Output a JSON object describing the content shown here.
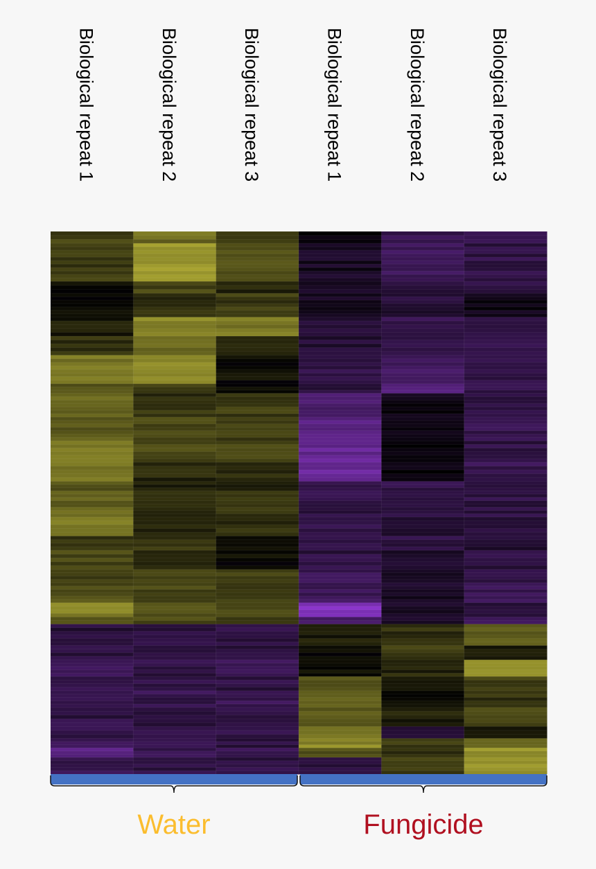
{
  "chart_data": {
    "type": "heatmap",
    "columns": [
      "Biological repeat 1",
      "Biological repeat 2",
      "Biological repeat 3",
      "Biological repeat 1",
      "Biological repeat 2",
      "Biological repeat 3"
    ],
    "groups": [
      {
        "label": "Water",
        "columns": [
          0,
          1,
          2
        ],
        "color": "#fbbd2e"
      },
      {
        "label": "Fungicide",
        "columns": [
          3,
          4,
          5
        ],
        "color": "#b01020"
      }
    ],
    "color_scale": {
      "low": "#9a3be0",
      "mid": "#000000",
      "high": "#c7c23a"
    },
    "value_range": [
      -1,
      1
    ],
    "blocks": [
      {
        "span": 0.025,
        "values": [
          0.35,
          0.55,
          0.3,
          -0.05,
          -0.35,
          -0.3
        ]
      },
      {
        "span": 0.08,
        "values": [
          0.3,
          0.8,
          0.45,
          -0.15,
          -0.4,
          -0.3
        ]
      },
      {
        "span": 0.025,
        "values": [
          0.05,
          0.35,
          0.2,
          -0.2,
          -0.3,
          -0.3
        ]
      },
      {
        "span": 0.05,
        "values": [
          0.02,
          0.25,
          0.3,
          -0.15,
          -0.25,
          -0.1
        ]
      },
      {
        "span": 0.04,
        "values": [
          0.15,
          0.7,
          0.6,
          -0.2,
          -0.35,
          -0.25
        ]
      },
      {
        "span": 0.04,
        "values": [
          0.25,
          0.55,
          0.2,
          -0.25,
          -0.35,
          -0.35
        ]
      },
      {
        "span": 0.06,
        "values": [
          0.6,
          0.7,
          0.05,
          -0.3,
          -0.4,
          -0.3
        ]
      },
      {
        "span": 0.02,
        "values": [
          0.45,
          0.3,
          0.05,
          -0.3,
          -0.55,
          -0.35
        ]
      },
      {
        "span": 0.05,
        "values": [
          0.5,
          0.25,
          0.3,
          -0.5,
          -0.1,
          -0.3
        ]
      },
      {
        "span": 0.05,
        "values": [
          0.45,
          0.35,
          0.3,
          -0.6,
          -0.1,
          -0.35
        ]
      },
      {
        "span": 0.045,
        "values": [
          0.65,
          0.35,
          0.35,
          -0.65,
          -0.05,
          -0.3
        ]
      },
      {
        "span": 0.04,
        "values": [
          0.6,
          0.2,
          0.25,
          -0.7,
          -0.05,
          -0.35
        ]
      },
      {
        "span": 0.02,
        "values": [
          0.4,
          0.15,
          0.1,
          -0.3,
          -0.3,
          -0.3
        ]
      },
      {
        "span": 0.055,
        "values": [
          0.5,
          0.2,
          0.25,
          -0.3,
          -0.3,
          -0.3
        ]
      },
      {
        "span": 0.04,
        "values": [
          0.6,
          0.15,
          0.25,
          -0.35,
          -0.25,
          -0.3
        ]
      },
      {
        "span": 0.03,
        "values": [
          0.25,
          0.25,
          0.1,
          -0.3,
          -0.3,
          -0.25
        ]
      },
      {
        "span": 0.04,
        "values": [
          0.35,
          0.2,
          0.05,
          -0.3,
          -0.2,
          -0.3
        ]
      },
      {
        "span": 0.035,
        "values": [
          0.3,
          0.4,
          0.3,
          -0.4,
          -0.2,
          -0.3
        ]
      },
      {
        "span": 0.035,
        "values": [
          0.4,
          0.35,
          0.3,
          -0.4,
          -0.15,
          -0.35
        ]
      },
      {
        "span": 0.03,
        "values": [
          0.65,
          0.45,
          0.35,
          -0.85,
          -0.15,
          -0.3
        ]
      },
      {
        "span": 0.015,
        "values": [
          0.5,
          0.35,
          0.3,
          -0.5,
          -0.15,
          -0.4
        ]
      },
      {
        "span": 0.045,
        "values": [
          -0.25,
          -0.3,
          -0.3,
          0.15,
          0.25,
          0.45
        ]
      },
      {
        "span": 0.03,
        "values": [
          -0.3,
          -0.3,
          -0.3,
          0.05,
          0.3,
          0.1
        ]
      },
      {
        "span": 0.035,
        "values": [
          -0.45,
          -0.3,
          -0.35,
          0.1,
          0.2,
          0.75
        ]
      },
      {
        "span": 0.03,
        "values": [
          -0.35,
          -0.3,
          -0.3,
          0.45,
          0.1,
          0.3
        ]
      },
      {
        "span": 0.035,
        "values": [
          -0.35,
          -0.35,
          -0.35,
          0.55,
          0.1,
          0.25
        ]
      },
      {
        "span": 0.04,
        "values": [
          -0.3,
          -0.3,
          -0.3,
          0.45,
          0.15,
          0.4
        ]
      },
      {
        "span": 0.025,
        "values": [
          -0.3,
          -0.3,
          -0.3,
          0.6,
          -0.2,
          0.05
        ]
      },
      {
        "span": 0.02,
        "values": [
          -0.35,
          -0.35,
          -0.3,
          0.7,
          0.3,
          0.5
        ]
      },
      {
        "span": 0.02,
        "values": [
          -0.55,
          -0.35,
          -0.35,
          0.4,
          0.25,
          0.75
        ]
      },
      {
        "span": 0.035,
        "values": [
          -0.35,
          -0.3,
          -0.3,
          -0.3,
          0.3,
          0.8
        ]
      }
    ]
  }
}
